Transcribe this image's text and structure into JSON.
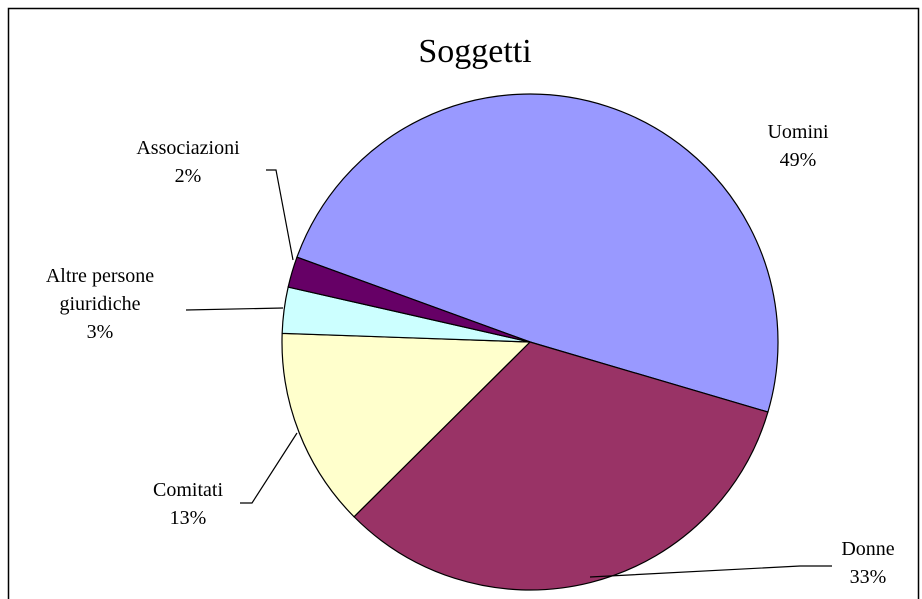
{
  "chart_data": {
    "type": "pie",
    "title": "Soggetti",
    "categories": [
      "Uomini",
      "Donne",
      "Comitati",
      "Altre persone giuridiche",
      "Associazioni"
    ],
    "values": [
      49,
      33,
      13,
      3,
      2
    ],
    "value_labels": [
      "49%",
      "33%",
      "13%",
      "3%",
      "2%"
    ],
    "colors": [
      "#9999ff",
      "#993366",
      "#ffffcc",
      "#ccffff",
      "#660066"
    ]
  }
}
